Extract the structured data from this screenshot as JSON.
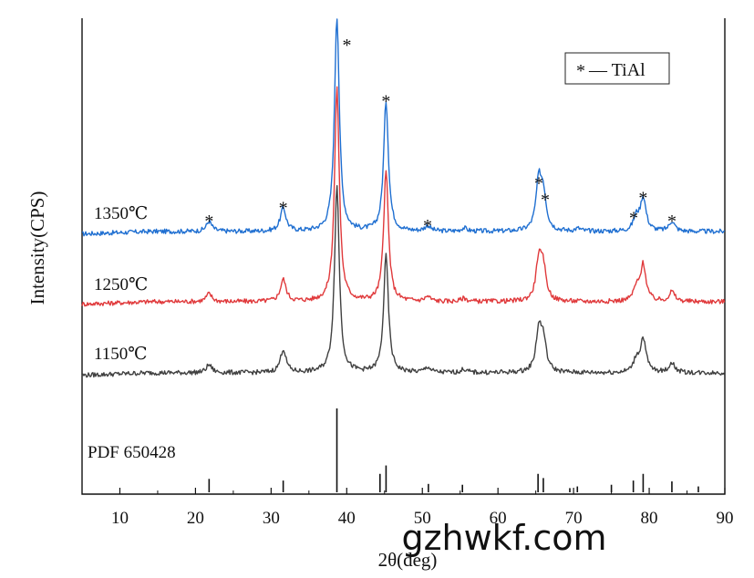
{
  "chart_data": {
    "type": "line",
    "xlabel": "2θ(deg)",
    "ylabel": "Intensity(CPS)",
    "xlim": [
      5,
      90
    ],
    "x_ticks": [
      10,
      20,
      30,
      40,
      50,
      60,
      70,
      80,
      90
    ],
    "y_ticks_shown": false,
    "grid": false,
    "legend": {
      "position": "top-right",
      "marker": "*",
      "label": "— TiAl"
    },
    "peak_marker": "*",
    "series": [
      {
        "name": "1350℃",
        "color": "#1f6fd1",
        "baseline": 1.0,
        "peaks": [
          {
            "x": 21.8,
            "h": 0.15,
            "marked": true
          },
          {
            "x": 31.6,
            "h": 0.35,
            "marked": true
          },
          {
            "x": 38.7,
            "h": 3.25,
            "marked": true
          },
          {
            "x": 45.2,
            "h": 1.95,
            "marked": true
          },
          {
            "x": 50.7,
            "h": 0.08,
            "marked": true
          },
          {
            "x": 55.5,
            "h": 0.05,
            "marked": false
          },
          {
            "x": 65.4,
            "h": 0.72,
            "marked": true
          },
          {
            "x": 66.0,
            "h": 0.5,
            "marked": true
          },
          {
            "x": 70.6,
            "h": 0.04,
            "marked": false
          },
          {
            "x": 78.3,
            "h": 0.2,
            "marked": true
          },
          {
            "x": 79.2,
            "h": 0.5,
            "marked": true
          },
          {
            "x": 83.0,
            "h": 0.15,
            "marked": true
          }
        ]
      },
      {
        "name": "1250℃",
        "color": "#e0393b",
        "baseline": 1.0,
        "peaks": [
          {
            "x": 21.8,
            "h": 0.12
          },
          {
            "x": 31.6,
            "h": 0.33
          },
          {
            "x": 38.7,
            "h": 3.2
          },
          {
            "x": 45.2,
            "h": 1.95
          },
          {
            "x": 50.7,
            "h": 0.07
          },
          {
            "x": 55.5,
            "h": 0.05
          },
          {
            "x": 65.4,
            "h": 0.6
          },
          {
            "x": 66.0,
            "h": 0.45
          },
          {
            "x": 78.3,
            "h": 0.18
          },
          {
            "x": 79.2,
            "h": 0.55
          },
          {
            "x": 83.0,
            "h": 0.15
          }
        ]
      },
      {
        "name": "1150℃",
        "color": "#404040",
        "baseline": 1.0,
        "peaks": [
          {
            "x": 21.8,
            "h": 0.12
          },
          {
            "x": 31.6,
            "h": 0.35
          },
          {
            "x": 38.7,
            "h": 2.8
          },
          {
            "x": 45.2,
            "h": 1.75
          },
          {
            "x": 50.7,
            "h": 0.08
          },
          {
            "x": 55.5,
            "h": 0.05
          },
          {
            "x": 65.4,
            "h": 0.6
          },
          {
            "x": 66.0,
            "h": 0.45
          },
          {
            "x": 78.3,
            "h": 0.18
          },
          {
            "x": 79.2,
            "h": 0.5
          },
          {
            "x": 83.0,
            "h": 0.15
          }
        ]
      }
    ],
    "reference": {
      "label": "PDF  650428",
      "sticks": [
        {
          "x": 21.8,
          "h": 0.16
        },
        {
          "x": 31.6,
          "h": 0.14
        },
        {
          "x": 38.7,
          "h": 1.0
        },
        {
          "x": 44.4,
          "h": 0.22
        },
        {
          "x": 45.2,
          "h": 0.32
        },
        {
          "x": 50.8,
          "h": 0.1
        },
        {
          "x": 55.3,
          "h": 0.09
        },
        {
          "x": 65.3,
          "h": 0.22
        },
        {
          "x": 66.0,
          "h": 0.17
        },
        {
          "x": 69.5,
          "h": 0.05
        },
        {
          "x": 70.5,
          "h": 0.07
        },
        {
          "x": 75.0,
          "h": 0.09
        },
        {
          "x": 77.9,
          "h": 0.14
        },
        {
          "x": 79.2,
          "h": 0.22
        },
        {
          "x": 83.0,
          "h": 0.13
        },
        {
          "x": 86.5,
          "h": 0.07
        }
      ]
    }
  },
  "watermark": "gzhwkf.com"
}
